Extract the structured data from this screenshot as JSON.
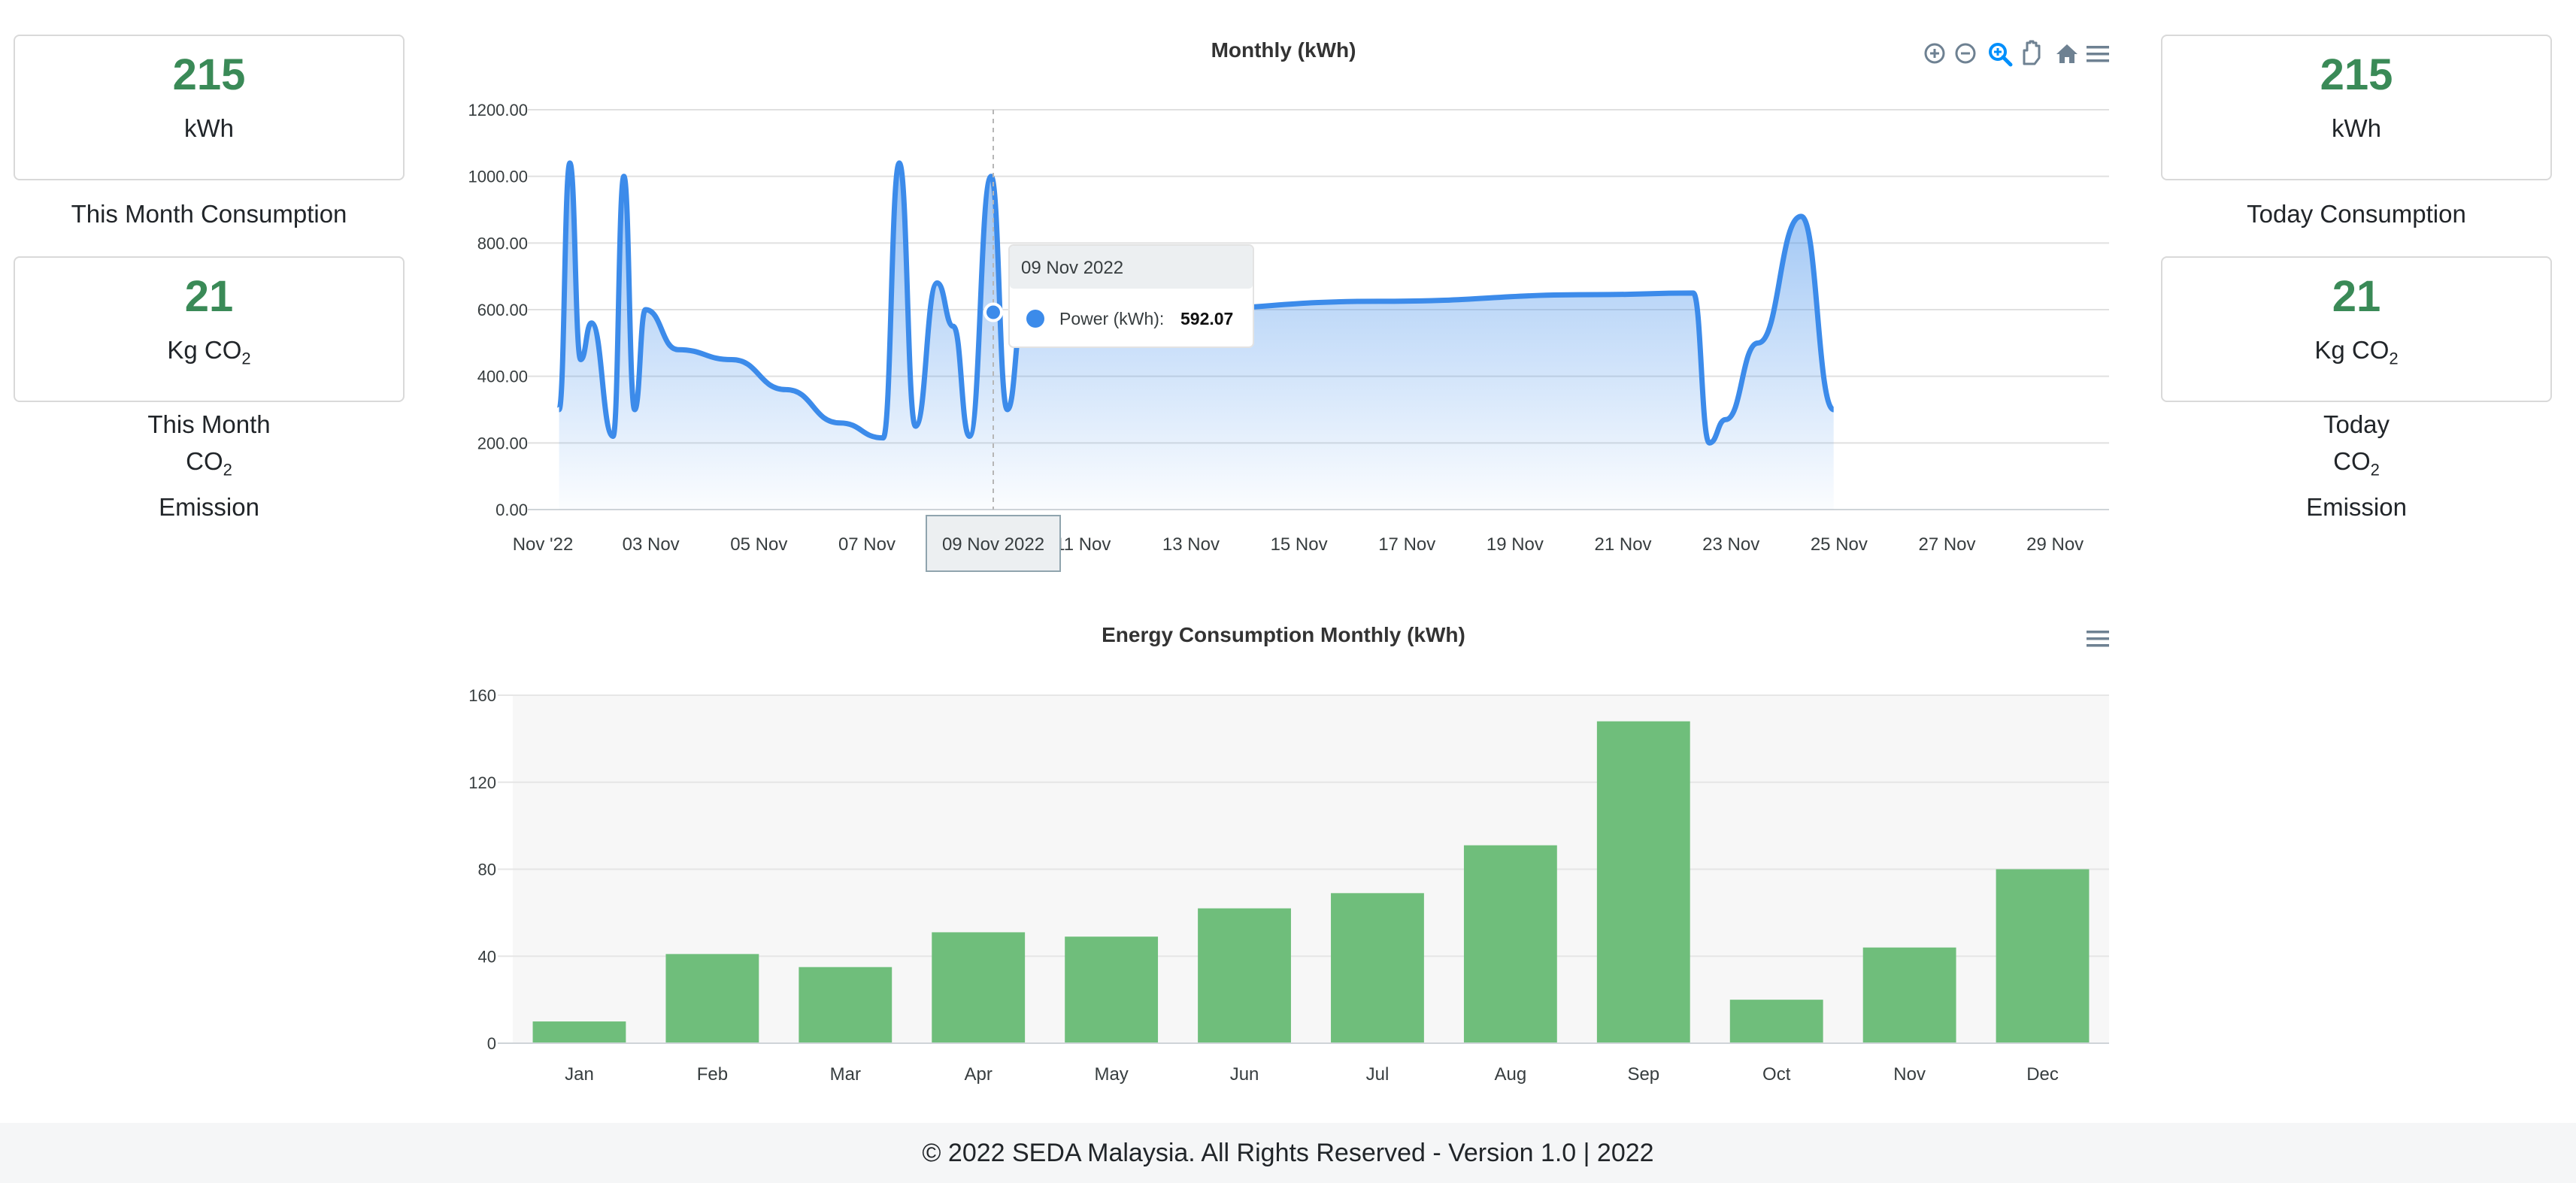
{
  "left_panel": {
    "month_consumption": {
      "value": "215",
      "unit": "kWh",
      "label": "This Month Consumption"
    },
    "month_emission": {
      "value": "21",
      "unit": "Kg CO",
      "unit_sub": "2",
      "label_line1": "This Month",
      "label_line2": "CO",
      "label_line2_sub": "2",
      "label_line3": "Emission"
    }
  },
  "right_panel": {
    "today_consumption": {
      "value": "215",
      "unit": "kWh",
      "label": "Today Consumption"
    },
    "today_emission": {
      "value": "21",
      "unit": "Kg CO",
      "unit_sub": "2",
      "label_line1": "Today",
      "label_line2": "CO",
      "label_line2_sub": "2",
      "label_line3": "Emission"
    }
  },
  "colors": {
    "stat_value": "#3a8a57",
    "line_series": "#3c8bea",
    "bar_series": "#6fbe7b",
    "toolbar_icon": "#6e8192",
    "toolbar_active": "#008ffb"
  },
  "toolbar_icons": [
    "zoom-in-icon",
    "zoom-out-icon",
    "zoom-selection-icon",
    "pan-hand-icon",
    "reset-home-icon",
    "menu-icon"
  ],
  "tooltip": {
    "title": "09 Nov 2022",
    "series_label": "Power (kWh):",
    "value": "592.07",
    "xaxis_label": "09 Nov 2022"
  },
  "chart_data": [
    {
      "type": "area",
      "title": "Monthly (kWh)",
      "series": [
        {
          "name": "Power (kWh)",
          "x": [
            "2022-11-01",
            "2022-11-01",
            "2022-11-01",
            "2022-11-01",
            "2022-11-02",
            "2022-11-02",
            "2022-11-02",
            "2022-11-02",
            "2022-11-03",
            "2022-11-04",
            "2022-11-05",
            "2022-11-06",
            "2022-11-07",
            "2022-11-07",
            "2022-11-07",
            "2022-11-08",
            "2022-11-08",
            "2022-11-08",
            "2022-11-09",
            "2022-11-09",
            "2022-11-09",
            "2022-11-12",
            "2022-11-16",
            "2022-11-20",
            "2022-11-22",
            "2022-11-22",
            "2022-11-22",
            "2022-11-23",
            "2022-11-24",
            "2022-11-24"
          ],
          "values": [
            300,
            1040,
            450,
            560,
            220,
            1000,
            300,
            600,
            480,
            450,
            360,
            260,
            215,
            1040,
            250,
            680,
            550,
            220,
            1000,
            300,
            592.07,
            600,
            625,
            645,
            650,
            200,
            270,
            500,
            880,
            300
          ]
        }
      ],
      "x_tick_labels": [
        "Nov '22",
        "03 Nov",
        "05 Nov",
        "07 Nov",
        "09 Nov",
        "11 Nov",
        "13 Nov",
        "15 Nov",
        "17 Nov",
        "19 Nov",
        "21 Nov",
        "23 Nov",
        "25 Nov",
        "27 Nov",
        "29 Nov"
      ],
      "y_tick_labels": [
        "0.00",
        "200.00",
        "400.00",
        "600.00",
        "800.00",
        "1000.00",
        "1200.00"
      ],
      "xlim": [
        "2022-11-01",
        "2022-11-30"
      ],
      "ylim": [
        0,
        1200
      ],
      "grid": true,
      "legend": "none"
    },
    {
      "type": "bar",
      "title": "Energy Consumption Monthly (kWh)",
      "categories": [
        "Jan",
        "Feb",
        "Mar",
        "Apr",
        "May",
        "Jun",
        "Jul",
        "Aug",
        "Sep",
        "Oct",
        "Nov",
        "Dec"
      ],
      "series": [
        {
          "values": [
            10,
            41,
            35,
            51,
            49,
            62,
            69,
            91,
            148,
            20,
            44,
            80
          ]
        }
      ],
      "y_tick_labels": [
        "0",
        "40",
        "80",
        "120",
        "160"
      ],
      "ylim": [
        0,
        160
      ],
      "grid": true,
      "legend": "none"
    }
  ],
  "footer": {
    "text": "© 2022 SEDA Malaysia. All Rights Reserved - Version 1.0 | 2022"
  }
}
